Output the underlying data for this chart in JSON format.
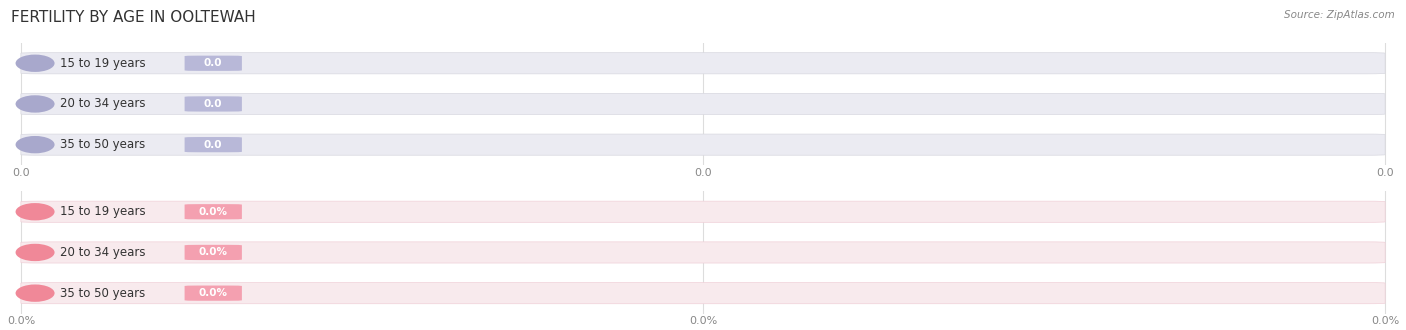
{
  "title": "FERTILITY BY AGE IN OOLTEWAH",
  "source": "Source: ZipAtlas.com",
  "top_section": {
    "categories": [
      "15 to 19 years",
      "20 to 34 years",
      "35 to 50 years"
    ],
    "values": [
      0.0,
      0.0,
      0.0
    ],
    "bar_bg_color": "#ebebf2",
    "bar_fill_color": "#a8a8cc",
    "value_bg_color": "#b8b8d8",
    "value_text_color": "#ffffff",
    "tick_label_fmt": "0.0",
    "x_tick_positions": [
      0.0,
      0.5,
      1.0
    ],
    "x_tick_labels": [
      "0.0",
      "0.0",
      "0.0"
    ]
  },
  "bottom_section": {
    "categories": [
      "15 to 19 years",
      "20 to 34 years",
      "35 to 50 years"
    ],
    "values": [
      0.0,
      0.0,
      0.0
    ],
    "bar_bg_color": "#f8eaed",
    "bar_fill_color": "#f08898",
    "value_bg_color": "#f4a0b0",
    "value_text_color": "#ffffff",
    "tick_label_fmt": "0.0%",
    "x_tick_positions": [
      0.0,
      0.5,
      1.0
    ],
    "x_tick_labels": [
      "0.0%",
      "0.0%",
      "0.0%"
    ]
  },
  "bg_color": "#ffffff",
  "grid_color": "#dddddd",
  "title_fontsize": 11,
  "source_fontsize": 7.5,
  "label_fontsize": 8.5,
  "value_fontsize": 7.5,
  "tick_fontsize": 8
}
